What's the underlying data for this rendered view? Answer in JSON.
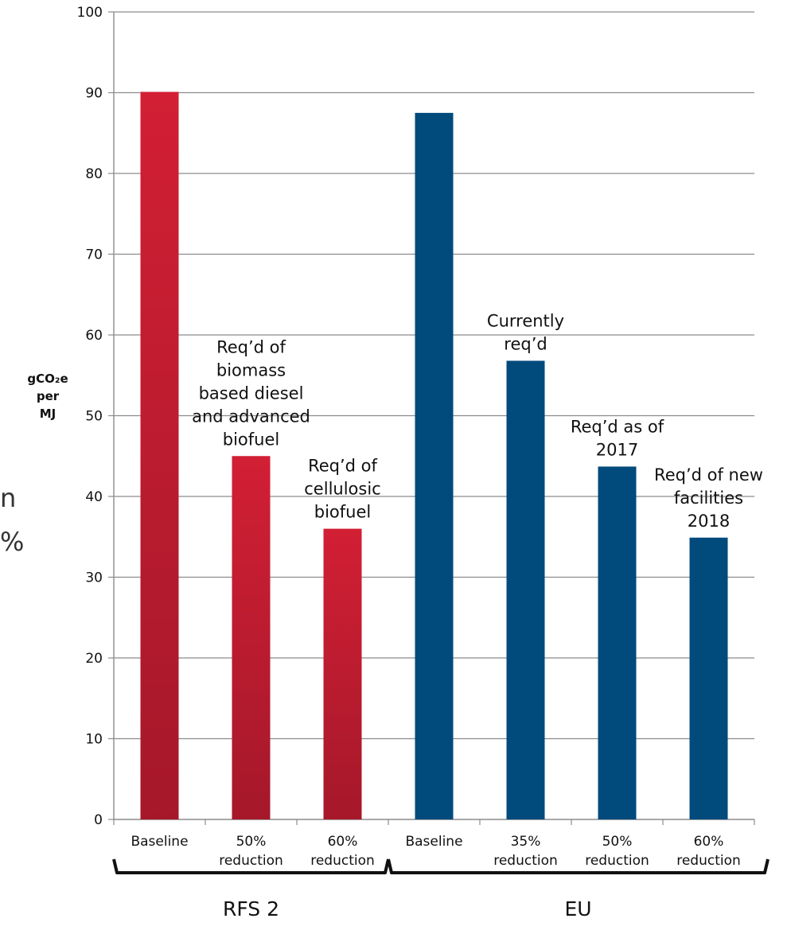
{
  "chart_data": {
    "type": "bar",
    "categories": [
      "Baseline",
      "50% reduction",
      "60% reduction",
      "Baseline",
      "35% reduction",
      "50% reduction",
      "60% reduction"
    ],
    "category_lines": [
      [
        "Baseline"
      ],
      [
        "50%",
        "reduction"
      ],
      [
        "60%",
        "reduction"
      ],
      [
        "Baseline"
      ],
      [
        "35%",
        "reduction"
      ],
      [
        "50%",
        "reduction"
      ],
      [
        "60%",
        "reduction"
      ]
    ],
    "values": [
      90.1,
      45,
      36,
      87.5,
      56.8,
      43.7,
      34.9
    ],
    "colors": [
      "#b8192b",
      "#b8192b",
      "#b8192b",
      "#004a7c",
      "#004a7c",
      "#004a7c",
      "#004a7c"
    ],
    "annotations": [
      [],
      [
        "Req’d of",
        "biomass",
        "based diesel",
        "and advanced",
        "biofuel"
      ],
      [
        "Req’d of",
        "cellulosic",
        "biofuel"
      ],
      [],
      [
        "Currently",
        "req’d"
      ],
      [
        "Req’d as of",
        "2017"
      ],
      [
        "Req’d of new",
        "facilities",
        "2018"
      ]
    ],
    "groups": [
      {
        "label": "RFS 2",
        "start": 0,
        "end": 2
      },
      {
        "label": "EU",
        "start": 3,
        "end": 6
      }
    ],
    "ylabel_lines": [
      "gCO₂e",
      "per",
      "MJ"
    ],
    "ylim": [
      0,
      100
    ],
    "yticks": [
      0,
      10,
      20,
      30,
      40,
      50,
      60,
      70,
      80,
      90,
      100
    ],
    "grid": true,
    "background_fragments": [
      "n",
      "%"
    ]
  }
}
